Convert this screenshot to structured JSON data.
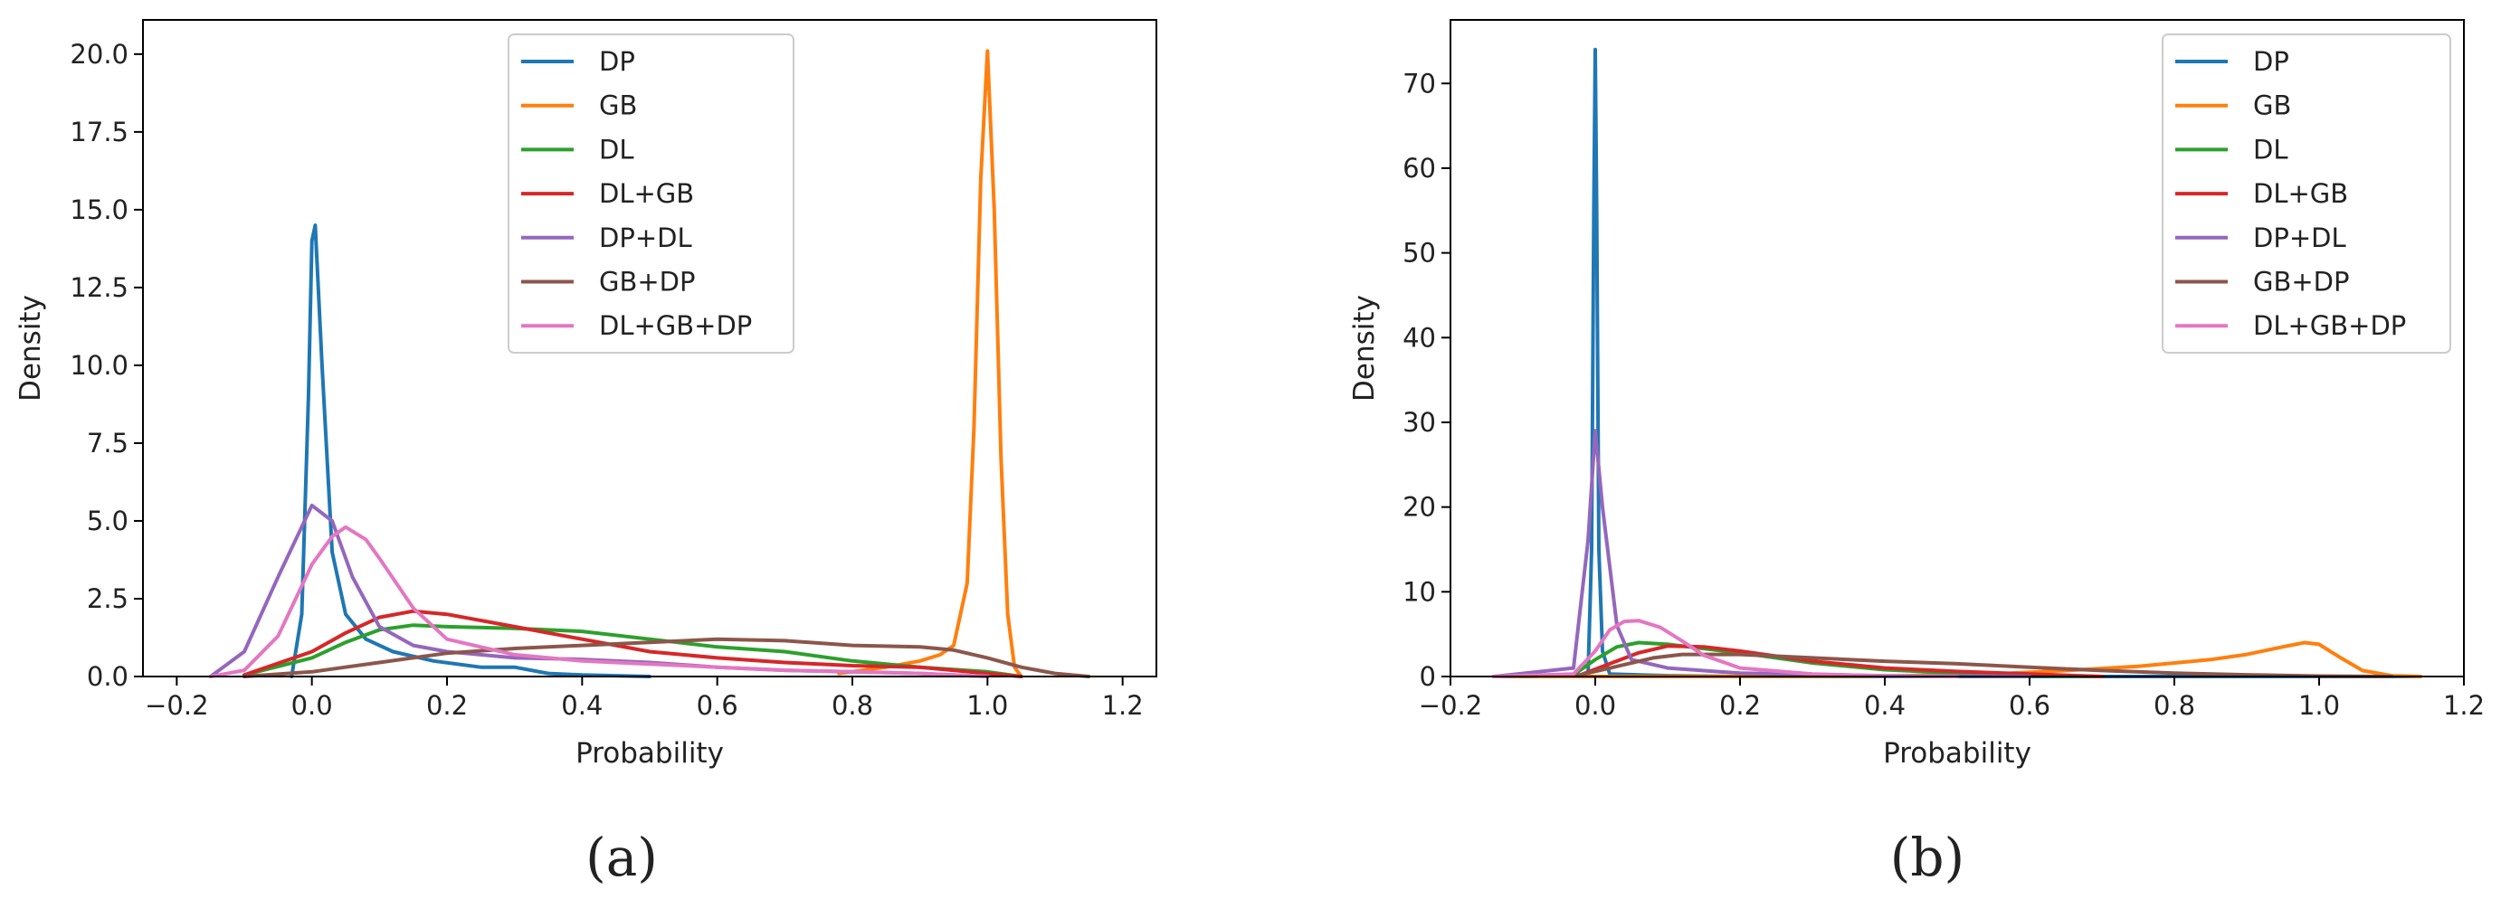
{
  "colors": {
    "DP": "#1f77b4",
    "GB": "#ff7f0e",
    "DL": "#2ca02c",
    "DL+GB": "#d62728",
    "DP+DL": "#9467bd",
    "GB+DP": "#8c564b",
    "DL+GB+DP": "#e377c2"
  },
  "chart_data": [
    {
      "type": "line",
      "panel_label": "(a)",
      "xlabel": "Probability",
      "ylabel": "Density",
      "xlim": [
        -0.25,
        1.25
      ],
      "ylim": [
        0,
        21.1
      ],
      "x_ticks": [
        -0.2,
        0.0,
        0.2,
        0.4,
        0.6,
        0.8,
        1.0,
        1.2
      ],
      "x_tick_labels": [
        "−0.2",
        "0.0",
        "0.2",
        "0.4",
        "0.6",
        "0.8",
        "1.0",
        "1.2"
      ],
      "y_ticks": [
        0,
        2.5,
        5,
        7.5,
        10,
        12.5,
        15,
        17.5,
        20
      ],
      "y_tick_labels": [
        "0.0",
        "2.5",
        "5.0",
        "7.5",
        "10.0",
        "12.5",
        "15.0",
        "17.5",
        "20.0"
      ],
      "grid": false,
      "legend_position": "top-center",
      "series": [
        {
          "name": "DP",
          "x": [
            -0.03,
            -0.015,
            -0.005,
            0.0,
            0.005,
            0.015,
            0.03,
            0.05,
            0.08,
            0.12,
            0.18,
            0.25,
            0.3,
            0.35,
            0.4,
            0.5
          ],
          "y": [
            0,
            2,
            9,
            14,
            14.5,
            10,
            4,
            2,
            1.2,
            0.8,
            0.5,
            0.3,
            0.3,
            0.1,
            0.05,
            0
          ]
        },
        {
          "name": "GB",
          "x": [
            0.78,
            0.85,
            0.9,
            0.93,
            0.95,
            0.97,
            0.98,
            0.99,
            1.0,
            1.01,
            1.02,
            1.03,
            1.04,
            1.05
          ],
          "y": [
            0.1,
            0.3,
            0.5,
            0.7,
            1.0,
            3,
            8,
            16,
            20.1,
            15,
            7,
            2,
            0.3,
            0
          ]
        },
        {
          "name": "DL",
          "x": [
            -0.1,
            0,
            0.05,
            0.1,
            0.15,
            0.2,
            0.3,
            0.4,
            0.5,
            0.6,
            0.7,
            0.8,
            0.9,
            1.0,
            1.05
          ],
          "y": [
            0.05,
            0.6,
            1.1,
            1.5,
            1.65,
            1.6,
            1.55,
            1.45,
            1.2,
            0.95,
            0.8,
            0.5,
            0.3,
            0.15,
            0
          ]
        },
        {
          "name": "DL+GB",
          "x": [
            -0.1,
            0,
            0.05,
            0.1,
            0.15,
            0.2,
            0.3,
            0.4,
            0.5,
            0.6,
            0.7,
            0.8,
            0.9,
            1.0,
            1.05
          ],
          "y": [
            0.05,
            0.8,
            1.4,
            1.9,
            2.1,
            2.0,
            1.6,
            1.2,
            0.8,
            0.6,
            0.45,
            0.35,
            0.3,
            0.1,
            0
          ]
        },
        {
          "name": "DP+DL",
          "x": [
            -0.15,
            -0.1,
            -0.05,
            0,
            0.03,
            0.06,
            0.1,
            0.15,
            0.2,
            0.3,
            0.4,
            0.5,
            0.6,
            0.7,
            0.8,
            0.9,
            1.0
          ],
          "y": [
            0,
            0.8,
            3.2,
            5.5,
            5.0,
            3.2,
            1.6,
            1.0,
            0.8,
            0.6,
            0.55,
            0.45,
            0.3,
            0.2,
            0.15,
            0.1,
            0
          ]
        },
        {
          "name": "GB+DP",
          "x": [
            -0.1,
            0,
            0.1,
            0.2,
            0.3,
            0.4,
            0.5,
            0.6,
            0.7,
            0.8,
            0.9,
            0.95,
            1.0,
            1.05,
            1.1,
            1.15
          ],
          "y": [
            0,
            0.15,
            0.45,
            0.75,
            0.9,
            1.0,
            1.1,
            1.2,
            1.15,
            1.0,
            0.95,
            0.85,
            0.6,
            0.3,
            0.1,
            0
          ]
        },
        {
          "name": "DL+GB+DP",
          "x": [
            -0.15,
            -0.1,
            -0.05,
            0,
            0.03,
            0.05,
            0.08,
            0.1,
            0.15,
            0.2,
            0.3,
            0.4,
            0.5,
            0.6,
            0.7,
            0.8,
            0.9,
            1.0
          ],
          "y": [
            0,
            0.2,
            1.3,
            3.6,
            4.5,
            4.8,
            4.4,
            3.8,
            2.2,
            1.2,
            0.7,
            0.5,
            0.4,
            0.3,
            0.2,
            0.15,
            0.1,
            0
          ]
        }
      ]
    },
    {
      "type": "line",
      "panel_label": "(b)",
      "xlabel": "Probability",
      "ylabel": "Density",
      "xlim": [
        -0.2,
        1.2
      ],
      "ylim": [
        0,
        77.5
      ],
      "x_ticks": [
        -0.2,
        0.0,
        0.2,
        0.4,
        0.6,
        0.8,
        1.0,
        1.2
      ],
      "x_tick_labels": [
        "−0.2",
        "0.0",
        "0.2",
        "0.4",
        "0.6",
        "0.8",
        "1.0",
        "1.2"
      ],
      "y_ticks": [
        0,
        10,
        20,
        30,
        40,
        50,
        60,
        70
      ],
      "y_tick_labels": [
        "0",
        "10",
        "20",
        "30",
        "40",
        "50",
        "60",
        "70"
      ],
      "grid": false,
      "legend_position": "top-right",
      "series": [
        {
          "name": "DP",
          "x": [
            -0.14,
            -0.01,
            -0.005,
            -0.002,
            0.0,
            0.002,
            0.005,
            0.01,
            0.02,
            0.1,
            0.2,
            1.14
          ],
          "y": [
            0,
            0,
            15,
            55,
            74,
            55,
            15,
            3,
            0.3,
            0.1,
            0,
            0
          ]
        },
        {
          "name": "GB",
          "x": [
            -0.14,
            0.0,
            0.2,
            0.4,
            0.55,
            0.65,
            0.75,
            0.85,
            0.9,
            0.95,
            0.98,
            1.0,
            1.03,
            1.06,
            1.1,
            1.14
          ],
          "y": [
            0,
            0,
            0,
            0.05,
            0.3,
            0.7,
            1.2,
            2.0,
            2.6,
            3.5,
            4.0,
            3.8,
            2.2,
            0.7,
            0.1,
            0
          ]
        },
        {
          "name": "DL",
          "x": [
            -0.14,
            -0.03,
            0,
            0.03,
            0.06,
            0.1,
            0.15,
            0.2,
            0.3,
            0.4,
            0.5,
            0.6,
            0.7
          ],
          "y": [
            0,
            0.2,
            2.0,
            3.5,
            4.0,
            3.8,
            3.3,
            2.8,
            1.6,
            0.8,
            0.4,
            0.1,
            0
          ]
        },
        {
          "name": "DL+GB",
          "x": [
            -0.14,
            -0.02,
            0.02,
            0.06,
            0.1,
            0.15,
            0.2,
            0.3,
            0.4,
            0.5,
            0.6,
            0.7
          ],
          "y": [
            0,
            0.2,
            1.5,
            2.8,
            3.6,
            3.5,
            3.0,
            1.8,
            1.0,
            0.6,
            0.3,
            0
          ]
        },
        {
          "name": "DP+DL",
          "x": [
            -0.14,
            -0.03,
            -0.01,
            0.0,
            0.01,
            0.03,
            0.05,
            0.1,
            0.2,
            0.4,
            0.6
          ],
          "y": [
            0,
            1,
            16,
            29,
            20,
            6,
            2,
            1.0,
            0.4,
            0.1,
            0
          ]
        },
        {
          "name": "GB+DP",
          "x": [
            -0.14,
            -0.02,
            0.03,
            0.08,
            0.12,
            0.2,
            0.3,
            0.4,
            0.5,
            0.6,
            0.7,
            0.8,
            0.9,
            1.0,
            1.1
          ],
          "y": [
            0,
            0.2,
            1.2,
            2.2,
            2.6,
            2.6,
            2.2,
            1.8,
            1.5,
            1.1,
            0.7,
            0.4,
            0.2,
            0.05,
            0
          ]
        },
        {
          "name": "DL+GB+DP",
          "x": [
            -0.14,
            -0.03,
            0,
            0.02,
            0.04,
            0.06,
            0.09,
            0.12,
            0.15,
            0.2,
            0.3,
            0.4,
            0.5
          ],
          "y": [
            0,
            0.3,
            3.0,
            5.5,
            6.5,
            6.6,
            5.8,
            4.2,
            2.5,
            1.0,
            0.3,
            0.05,
            0
          ]
        }
      ]
    }
  ]
}
